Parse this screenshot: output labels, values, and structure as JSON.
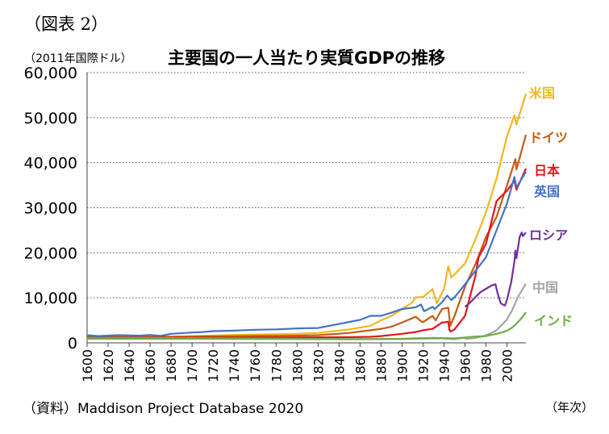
{
  "figure_label": "（図表 2）",
  "unit_label": "（2011年国際ドル）",
  "source": "（資料）Maddison Project Database 2020",
  "x_unit": "（年次）",
  "chart_data": {
    "type": "line",
    "title": "主要国の一人当たり実質GDPの推移",
    "xlabel": "（年次）",
    "ylabel": "（2011年国際ドル）",
    "xlim": [
      1600,
      2018
    ],
    "ylim": [
      0,
      60000
    ],
    "yticks": [
      0,
      10000,
      20000,
      30000,
      40000,
      50000,
      60000
    ],
    "ytick_labels": [
      "0",
      "10,000",
      "20,000",
      "30,000",
      "40,000",
      "50,000",
      "60,000"
    ],
    "xticks": [
      1600,
      1620,
      1640,
      1660,
      1680,
      1700,
      1720,
      1740,
      1760,
      1780,
      1800,
      1820,
      1840,
      1860,
      1880,
      1900,
      1920,
      1940,
      1960,
      1980,
      2000
    ],
    "grid": "horizontal-dotted",
    "legend": "inline-right",
    "series": [
      {
        "name": "米国",
        "color": "#F2B722",
        "points": [
          [
            1650,
            1100
          ],
          [
            1700,
            1500
          ],
          [
            1750,
            1800
          ],
          [
            1800,
            2000
          ],
          [
            1820,
            2200
          ],
          [
            1850,
            3000
          ],
          [
            1870,
            3800
          ],
          [
            1880,
            5000
          ],
          [
            1890,
            6000
          ],
          [
            1900,
            7500
          ],
          [
            1910,
            9000
          ],
          [
            1913,
            10100
          ],
          [
            1920,
            10200
          ],
          [
            1929,
            11900
          ],
          [
            1933,
            8800
          ],
          [
            1940,
            12000
          ],
          [
            1944,
            17000
          ],
          [
            1947,
            14500
          ],
          [
            1950,
            15200
          ],
          [
            1960,
            17600
          ],
          [
            1970,
            23000
          ],
          [
            1980,
            29000
          ],
          [
            1990,
            36500
          ],
          [
            2000,
            45900
          ],
          [
            2007,
            50500
          ],
          [
            2009,
            48500
          ],
          [
            2018,
            55300
          ]
        ]
      },
      {
        "name": "ドイツ",
        "color": "#C55A11",
        "points": [
          [
            1600,
            1300
          ],
          [
            1650,
            1300
          ],
          [
            1700,
            1400
          ],
          [
            1750,
            1500
          ],
          [
            1800,
            1600
          ],
          [
            1820,
            1700
          ],
          [
            1850,
            2200
          ],
          [
            1870,
            2800
          ],
          [
            1880,
            3100
          ],
          [
            1890,
            3600
          ],
          [
            1900,
            4500
          ],
          [
            1913,
            5800
          ],
          [
            1918,
            4800
          ],
          [
            1920,
            4600
          ],
          [
            1929,
            6000
          ],
          [
            1932,
            5000
          ],
          [
            1938,
            7500
          ],
          [
            1944,
            7800
          ],
          [
            1946,
            3800
          ],
          [
            1950,
            6000
          ],
          [
            1960,
            12500
          ],
          [
            1970,
            17500
          ],
          [
            1980,
            23500
          ],
          [
            1990,
            28000
          ],
          [
            2000,
            35000
          ],
          [
            2008,
            40800
          ],
          [
            2009,
            38500
          ],
          [
            2018,
            46200
          ]
        ]
      },
      {
        "name": "日本",
        "color": "#E3141B",
        "points": [
          [
            1600,
            1100
          ],
          [
            1650,
            1100
          ],
          [
            1700,
            1150
          ],
          [
            1750,
            1150
          ],
          [
            1800,
            1200
          ],
          [
            1850,
            1250
          ],
          [
            1870,
            1350
          ],
          [
            1880,
            1500
          ],
          [
            1890,
            1750
          ],
          [
            1900,
            2000
          ],
          [
            1913,
            2400
          ],
          [
            1920,
            2800
          ],
          [
            1929,
            3100
          ],
          [
            1938,
            4500
          ],
          [
            1944,
            4700
          ],
          [
            1945,
            3000
          ],
          [
            1946,
            2500
          ],
          [
            1950,
            3000
          ],
          [
            1960,
            6000
          ],
          [
            1970,
            15000
          ],
          [
            1973,
            19000
          ],
          [
            1980,
            22000
          ],
          [
            1990,
            31500
          ],
          [
            2000,
            33800
          ],
          [
            2007,
            36000
          ],
          [
            2009,
            34000
          ],
          [
            2018,
            38700
          ]
        ]
      },
      {
        "name": "英国",
        "color": "#4472C4",
        "points": [
          [
            1600,
            1700
          ],
          [
            1610,
            1500
          ],
          [
            1630,
            1700
          ],
          [
            1650,
            1600
          ],
          [
            1660,
            1750
          ],
          [
            1670,
            1550
          ],
          [
            1680,
            2000
          ],
          [
            1700,
            2300
          ],
          [
            1710,
            2400
          ],
          [
            1720,
            2600
          ],
          [
            1740,
            2700
          ],
          [
            1760,
            2900
          ],
          [
            1780,
            3000
          ],
          [
            1800,
            3200
          ],
          [
            1820,
            3300
          ],
          [
            1840,
            4200
          ],
          [
            1860,
            5100
          ],
          [
            1870,
            6000
          ],
          [
            1880,
            6000
          ],
          [
            1890,
            6700
          ],
          [
            1900,
            7500
          ],
          [
            1913,
            7900
          ],
          [
            1918,
            8500
          ],
          [
            1921,
            7000
          ],
          [
            1929,
            8000
          ],
          [
            1931,
            7500
          ],
          [
            1938,
            9000
          ],
          [
            1943,
            10500
          ],
          [
            1947,
            9500
          ],
          [
            1950,
            10100
          ],
          [
            1960,
            13000
          ],
          [
            1970,
            16000
          ],
          [
            1980,
            19000
          ],
          [
            1990,
            25000
          ],
          [
            2000,
            31000
          ],
          [
            2007,
            36800
          ],
          [
            2009,
            34500
          ],
          [
            2018,
            38000
          ]
        ]
      },
      {
        "name": "ロシア",
        "color": "#7030A0",
        "points": [
          [
            1960,
            8000
          ],
          [
            1965,
            9000
          ],
          [
            1970,
            10200
          ],
          [
            1975,
            11300
          ],
          [
            1980,
            12000
          ],
          [
            1985,
            12700
          ],
          [
            1989,
            13000
          ],
          [
            1991,
            11000
          ],
          [
            1994,
            8800
          ],
          [
            1996,
            8500
          ],
          [
            1998,
            8300
          ],
          [
            2000,
            9600
          ],
          [
            2004,
            13500
          ],
          [
            2007,
            18000
          ],
          [
            2008,
            20500
          ],
          [
            2009,
            18800
          ],
          [
            2012,
            23500
          ],
          [
            2014,
            24500
          ],
          [
            2015,
            23700
          ],
          [
            2018,
            24500
          ]
        ]
      },
      {
        "name": "中国",
        "color": "#A5A5A5",
        "points": [
          [
            1600,
            1000
          ],
          [
            1700,
            1000
          ],
          [
            1800,
            900
          ],
          [
            1850,
            800
          ],
          [
            1900,
            850
          ],
          [
            1913,
            900
          ],
          [
            1930,
            950
          ],
          [
            1940,
            950
          ],
          [
            1950,
            800
          ],
          [
            1958,
            1100
          ],
          [
            1962,
            900
          ],
          [
            1970,
            1100
          ],
          [
            1978,
            1500
          ],
          [
            1985,
            2200
          ],
          [
            1990,
            2800
          ],
          [
            1995,
            4000
          ],
          [
            2000,
            5200
          ],
          [
            2005,
            7300
          ],
          [
            2010,
            10000
          ],
          [
            2015,
            12000
          ],
          [
            2018,
            13100
          ]
        ]
      },
      {
        "name": "インド",
        "color": "#70AD47",
        "points": [
          [
            1600,
            900
          ],
          [
            1700,
            900
          ],
          [
            1800,
            850
          ],
          [
            1850,
            800
          ],
          [
            1900,
            900
          ],
          [
            1913,
            1000
          ],
          [
            1930,
            1100
          ],
          [
            1947,
            1000
          ],
          [
            1950,
            1000
          ],
          [
            1960,
            1200
          ],
          [
            1970,
            1400
          ],
          [
            1980,
            1500
          ],
          [
            1990,
            2000
          ],
          [
            2000,
            2700
          ],
          [
            2005,
            3400
          ],
          [
            2010,
            4500
          ],
          [
            2015,
            5800
          ],
          [
            2018,
            6800
          ]
        ]
      }
    ],
    "labels": [
      {
        "text": "米国",
        "series": "米国"
      },
      {
        "text": "ドイツ",
        "series": "ドイツ"
      },
      {
        "text": "日本",
        "series": "日本"
      },
      {
        "text": "英国",
        "series": "英国"
      },
      {
        "text": "ロシア",
        "series": "ロシア"
      },
      {
        "text": "中国",
        "series": "中国"
      },
      {
        "text": "インド",
        "series": "インド"
      }
    ]
  }
}
